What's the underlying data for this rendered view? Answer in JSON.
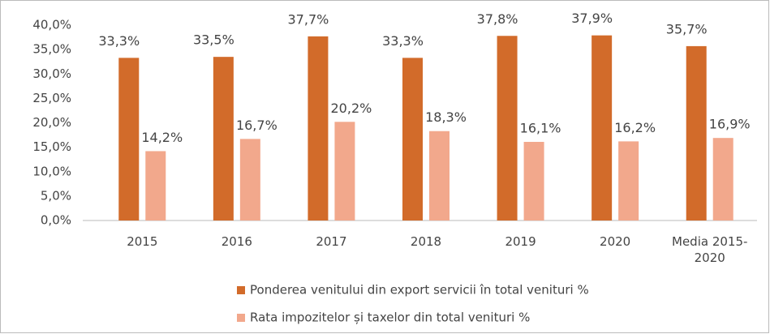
{
  "chart_data": {
    "type": "bar",
    "categories": [
      "2015",
      "2016",
      "2017",
      "2018",
      "2019",
      "2020",
      "Media 2015-2020"
    ],
    "series": [
      {
        "name": "Ponderea venitului din export servicii în total venituri %",
        "color": "#d26b2a",
        "values": [
          33.3,
          33.5,
          37.7,
          33.3,
          37.8,
          37.9,
          35.7
        ],
        "value_labels": [
          "33,3%",
          "33,5%",
          "37,7%",
          "33,3%",
          "37,8%",
          "37,9%",
          "35,7%"
        ]
      },
      {
        "name": "Rata impozitelor și taxelor din total venituri %",
        "color": "#f2a88c",
        "values": [
          14.2,
          16.7,
          20.2,
          18.3,
          16.1,
          16.2,
          16.9
        ],
        "value_labels": [
          "14,2%",
          "16,7%",
          "20,2%",
          "18,3%",
          "16,1%",
          "16,2%",
          "16,9%"
        ]
      }
    ],
    "ylim": [
      0,
      40
    ],
    "yticks": [
      {
        "value": 0,
        "label": "0,0%"
      },
      {
        "value": 5,
        "label": "5,0%"
      },
      {
        "value": 10,
        "label": "10,0%"
      },
      {
        "value": 15,
        "label": "15,0%"
      },
      {
        "value": 20,
        "label": "20,0%"
      },
      {
        "value": 25,
        "label": "25,0%"
      },
      {
        "value": 30,
        "label": "30,0%"
      },
      {
        "value": 35,
        "label": "35,0%"
      },
      {
        "value": 40,
        "label": "40,0%"
      }
    ],
    "grid": false,
    "legend": "bottom"
  }
}
